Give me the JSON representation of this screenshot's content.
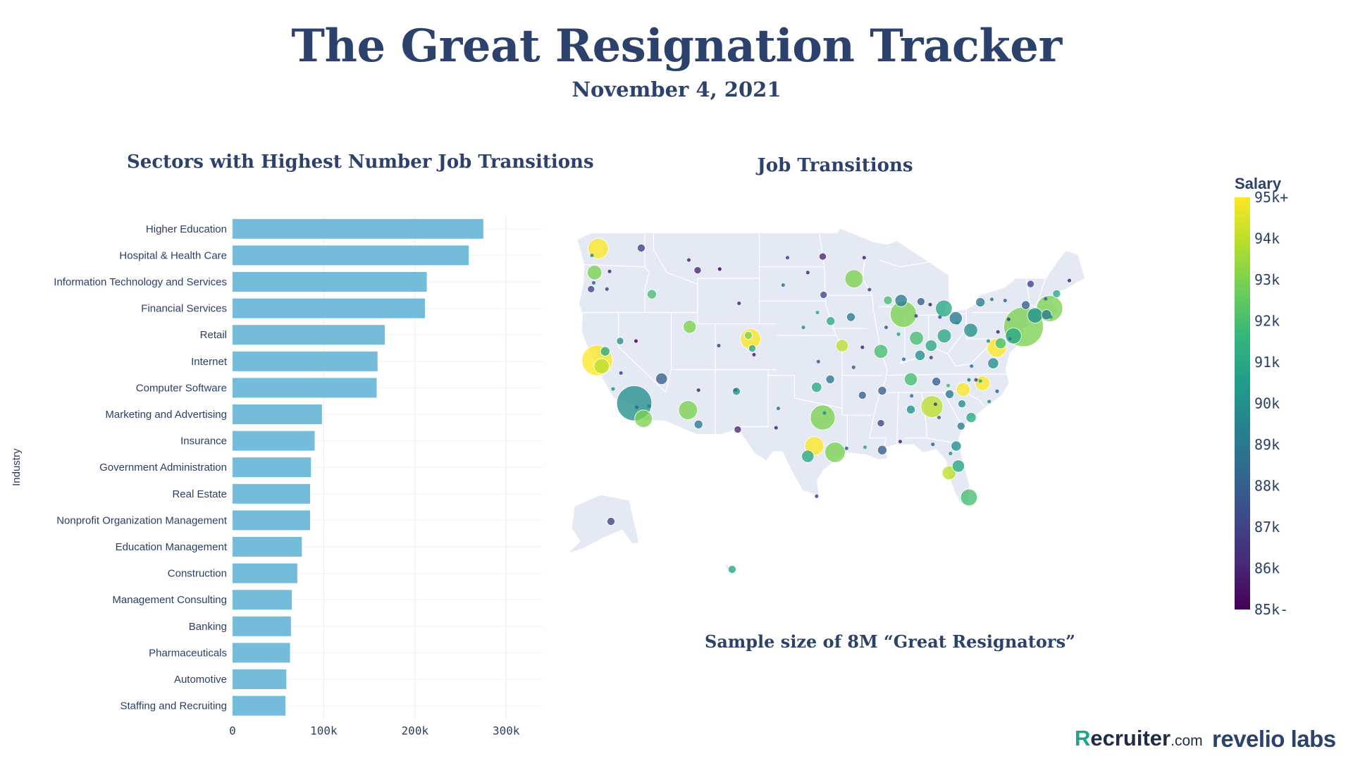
{
  "header": {
    "title": "The Great Resignation Tracker",
    "date": "November 4, 2021"
  },
  "map": {
    "title": "Job Transitions",
    "note": "Sample size of 8M “Great Resignators”"
  },
  "colorbar": {
    "title": "Salary",
    "ticks": [
      "95k+",
      "94k",
      "93k",
      "92k",
      "91k",
      "90k",
      "89k",
      "88k",
      "87k",
      "86k",
      "85k-"
    ],
    "colors": [
      "#440154",
      "#482878",
      "#3e4989",
      "#31688e",
      "#26828e",
      "#1f9e89",
      "#35b779",
      "#6ece58",
      "#b5de2b",
      "#fde725"
    ]
  },
  "logos": {
    "recruiter_r": "R",
    "recruiter_main": "ecruiter",
    "recruiter_com": ".com",
    "revelio": "revelio labs"
  },
  "chart_data": [
    {
      "type": "bar",
      "orientation": "horizontal",
      "title": "Sectors with Highest Number Job Transitions",
      "ylabel": "Industry",
      "xlabel": "",
      "color": "#74bcd9",
      "xlim": [
        0,
        340000
      ],
      "xticks": [
        0,
        100000,
        200000,
        300000
      ],
      "xtick_labels": [
        "0",
        "100k",
        "200k",
        "300k"
      ],
      "categories": [
        "Higher Education",
        "Hospital & Health Care",
        "Information Technology and Services",
        "Financial Services",
        "Retail",
        "Internet",
        "Computer Software",
        "Marketing and Advertising",
        "Insurance",
        "Government Administration",
        "Real Estate",
        "Nonprofit Organization Management",
        "Education Management",
        "Construction",
        "Management Consulting",
        "Banking",
        "Pharmaceuticals",
        "Automotive",
        "Staffing and Recruiting"
      ],
      "values": [
        275000,
        259000,
        213000,
        211000,
        167000,
        159000,
        158000,
        98000,
        90000,
        86000,
        85000,
        85000,
        76000,
        71000,
        65000,
        64000,
        63000,
        59000,
        58000
      ]
    },
    {
      "type": "scatter",
      "subtype": "bubble-map",
      "title": "Job Transitions",
      "region": "United States",
      "x_field": "longitude",
      "y_field": "latitude",
      "size_field": "job_transitions_relative",
      "color_field": "salary_k",
      "color_range": [
        85,
        95
      ],
      "points": [
        {
          "city": "Seattle",
          "lon": -122.3,
          "lat": 47.6,
          "size": 2.2,
          "salary": 95
        },
        {
          "city": "Portland",
          "lon": -122.7,
          "lat": 45.5,
          "size": 1.4,
          "salary": 93
        },
        {
          "city": "San Francisco",
          "lon": -122.4,
          "lat": 37.8,
          "size": 3.6,
          "salary": 95
        },
        {
          "city": "San Jose",
          "lon": -121.9,
          "lat": 37.3,
          "size": 1.5,
          "salary": 94
        },
        {
          "city": "Los Angeles",
          "lon": -118.2,
          "lat": 34.05,
          "size": 4.2,
          "salary": 90
        },
        {
          "city": "San Diego",
          "lon": -117.15,
          "lat": 32.7,
          "size": 1.8,
          "salary": 93
        },
        {
          "city": "Sacramento",
          "lon": -121.5,
          "lat": 38.6,
          "size": 0.7,
          "salary": 91
        },
        {
          "city": "Las Vegas",
          "lon": -115.1,
          "lat": 36.2,
          "size": 1.0,
          "salary": 88
        },
        {
          "city": "Phoenix",
          "lon": -112.1,
          "lat": 33.45,
          "size": 2.0,
          "salary": 93
        },
        {
          "city": "Tucson",
          "lon": -110.9,
          "lat": 32.2,
          "size": 0.6,
          "salary": 89
        },
        {
          "city": "Salt Lake City",
          "lon": -111.9,
          "lat": 40.75,
          "size": 1.2,
          "salary": 93
        },
        {
          "city": "Boise",
          "lon": -116.2,
          "lat": 43.6,
          "size": 0.7,
          "salary": 92
        },
        {
          "city": "Denver",
          "lon": -105.0,
          "lat": 39.7,
          "size": 2.2,
          "salary": 95
        },
        {
          "city": "Albuquerque",
          "lon": -106.6,
          "lat": 35.1,
          "size": 0.5,
          "salary": 90
        },
        {
          "city": "Dallas",
          "lon": -96.8,
          "lat": 32.8,
          "size": 2.8,
          "salary": 93
        },
        {
          "city": "Houston",
          "lon": -95.4,
          "lat": 29.75,
          "size": 2.2,
          "salary": 93
        },
        {
          "city": "Austin",
          "lon": -97.75,
          "lat": 30.3,
          "size": 2.0,
          "salary": 95
        },
        {
          "city": "San Antonio",
          "lon": -98.5,
          "lat": 29.4,
          "size": 1.1,
          "salary": 91
        },
        {
          "city": "Oklahoma City",
          "lon": -97.5,
          "lat": 35.45,
          "size": 0.8,
          "salary": 91
        },
        {
          "city": "Kansas City",
          "lon": -94.6,
          "lat": 39.1,
          "size": 1.1,
          "salary": 94
        },
        {
          "city": "Omaha",
          "lon": -95.9,
          "lat": 41.25,
          "size": 0.6,
          "salary": 91
        },
        {
          "city": "Minneapolis",
          "lon": -93.25,
          "lat": 44.95,
          "size": 1.9,
          "salary": 93
        },
        {
          "city": "St. Louis",
          "lon": -90.2,
          "lat": 38.6,
          "size": 1.3,
          "salary": 92
        },
        {
          "city": "Chicago",
          "lon": -87.65,
          "lat": 41.85,
          "size": 3.0,
          "salary": 93
        },
        {
          "city": "Milwaukee",
          "lon": -87.9,
          "lat": 43.05,
          "size": 1.1,
          "salary": 89
        },
        {
          "city": "Indianapolis",
          "lon": -86.15,
          "lat": 39.75,
          "size": 1.3,
          "salary": 92
        },
        {
          "city": "Detroit",
          "lon": -83.05,
          "lat": 42.35,
          "size": 1.7,
          "salary": 91
        },
        {
          "city": "Columbus",
          "lon": -83.0,
          "lat": 39.95,
          "size": 1.3,
          "salary": 91
        },
        {
          "city": "Cleveland",
          "lon": -81.7,
          "lat": 41.5,
          "size": 1.2,
          "salary": 89
        },
        {
          "city": "Pittsburgh",
          "lon": -80.0,
          "lat": 40.45,
          "size": 1.3,
          "salary": 90
        },
        {
          "city": "Nashville",
          "lon": -86.8,
          "lat": 36.15,
          "size": 1.2,
          "salary": 92
        },
        {
          "city": "Memphis",
          "lon": -90.05,
          "lat": 35.15,
          "size": 0.6,
          "salary": 88
        },
        {
          "city": "Atlanta",
          "lon": -84.4,
          "lat": 33.75,
          "size": 2.4,
          "salary": 94
        },
        {
          "city": "Charlotte",
          "lon": -80.85,
          "lat": 35.25,
          "size": 1.3,
          "salary": 95
        },
        {
          "city": "Raleigh",
          "lon": -78.65,
          "lat": 35.8,
          "size": 1.4,
          "salary": 95
        },
        {
          "city": "Charleston",
          "lon": -79.95,
          "lat": 32.8,
          "size": 0.8,
          "salary": 91
        },
        {
          "city": "Orlando",
          "lon": -81.4,
          "lat": 28.55,
          "size": 1.1,
          "salary": 91
        },
        {
          "city": "Tampa",
          "lon": -82.45,
          "lat": 27.95,
          "size": 1.3,
          "salary": 94
        },
        {
          "city": "Miami",
          "lon": -80.2,
          "lat": 25.8,
          "size": 1.7,
          "salary": 92
        },
        {
          "city": "Washington DC",
          "lon": -77.05,
          "lat": 38.9,
          "size": 2.0,
          "salary": 95
        },
        {
          "city": "Philadelphia",
          "lon": -75.15,
          "lat": 39.95,
          "size": 1.6,
          "salary": 91
        },
        {
          "city": "New York",
          "lon": -74.0,
          "lat": 40.75,
          "size": 4.8,
          "salary": 93
        },
        {
          "city": "Boston",
          "lon": -71.05,
          "lat": 42.35,
          "size": 3.0,
          "salary": 93
        },
        {
          "city": "Hartford",
          "lon": -72.7,
          "lat": 41.75,
          "size": 1.5,
          "salary": 90
        },
        {
          "city": "Baltimore",
          "lon": -76.6,
          "lat": 39.3,
          "size": 0.9,
          "salary": 92
        },
        {
          "city": "Richmond",
          "lon": -77.45,
          "lat": 37.55,
          "size": 0.9,
          "salary": 90
        },
        {
          "city": "New Orleans",
          "lon": -90.05,
          "lat": 29.95,
          "size": 0.7,
          "salary": 88
        },
        {
          "city": "Birmingham",
          "lon": -86.8,
          "lat": 33.5,
          "size": 0.6,
          "salary": 90
        },
        {
          "city": "Cincinnati",
          "lon": -84.5,
          "lat": 39.1,
          "size": 1.0,
          "salary": 91
        },
        {
          "city": "Louisville",
          "lon": -85.75,
          "lat": 38.25,
          "size": 0.8,
          "salary": 90
        },
        {
          "city": "Buffalo",
          "lon": -78.9,
          "lat": 42.9,
          "size": 0.7,
          "salary": 89
        },
        {
          "city": "Jacksonville",
          "lon": -81.65,
          "lat": 30.3,
          "size": 0.8,
          "salary": 90
        },
        {
          "city": "Tulsa",
          "lon": -95.95,
          "lat": 36.15,
          "size": 0.6,
          "salary": 89
        },
        {
          "city": "Spokane",
          "lon": -117.4,
          "lat": 47.65,
          "size": 0.5,
          "salary": 87
        },
        {
          "city": "Bozeman",
          "lon": -111.0,
          "lat": 45.7,
          "size": 0.4,
          "salary": 86
        },
        {
          "city": "Fargo",
          "lon": -96.8,
          "lat": 46.9,
          "size": 0.4,
          "salary": 86
        },
        {
          "city": "Sioux Falls",
          "lon": -96.7,
          "lat": 43.55,
          "size": 0.4,
          "salary": 87
        },
        {
          "city": "Des Moines",
          "lon": -93.6,
          "lat": 41.6,
          "size": 0.6,
          "salary": 89
        },
        {
          "city": "Madison",
          "lon": -89.4,
          "lat": 43.07,
          "size": 0.6,
          "salary": 92
        },
        {
          "city": "Grand Rapids",
          "lon": -85.65,
          "lat": 42.95,
          "size": 0.5,
          "salary": 88
        },
        {
          "city": "Albany",
          "lon": -73.75,
          "lat": 42.65,
          "size": 0.6,
          "salary": 88
        },
        {
          "city": "Providence",
          "lon": -71.4,
          "lat": 41.8,
          "size": 0.8,
          "salary": 89
        },
        {
          "city": "Portland ME",
          "lon": -70.25,
          "lat": 43.65,
          "size": 0.5,
          "salary": 91
        },
        {
          "city": "Burlington",
          "lon": -73.2,
          "lat": 44.5,
          "size": 0.4,
          "salary": 87
        },
        {
          "city": "El Paso",
          "lon": -106.45,
          "lat": 31.75,
          "size": 0.4,
          "salary": 86
        },
        {
          "city": "Little Rock",
          "lon": -92.3,
          "lat": 34.75,
          "size": 0.5,
          "salary": 88
        },
        {
          "city": "Jackson",
          "lon": -90.2,
          "lat": 32.3,
          "size": 0.4,
          "salary": 87
        },
        {
          "city": "Knoxville",
          "lon": -83.9,
          "lat": 35.95,
          "size": 0.6,
          "salary": 88
        },
        {
          "city": "Greenville",
          "lon": -82.4,
          "lat": 34.85,
          "size": 0.6,
          "salary": 89
        },
        {
          "city": "Columbia",
          "lon": -81.0,
          "lat": 34.0,
          "size": 0.5,
          "salary": 90
        },
        {
          "city": "Savannah",
          "lon": -81.1,
          "lat": 32.05,
          "size": 0.5,
          "salary": 89
        },
        {
          "city": "Boulder",
          "lon": -105.25,
          "lat": 40.0,
          "size": 0.5,
          "salary": 93
        },
        {
          "city": "Colorado Springs",
          "lon": -104.8,
          "lat": 38.85,
          "size": 0.4,
          "salary": 91
        },
        {
          "city": "Reno",
          "lon": -119.8,
          "lat": 39.5,
          "size": 0.4,
          "salary": 90
        },
        {
          "city": "Eugene",
          "lon": -123.1,
          "lat": 44.05,
          "size": 0.4,
          "salary": 87
        },
        {
          "city": "Anchorage",
          "lon": -149.9,
          "lat": 61.2,
          "size": 0.5,
          "salary": 87
        },
        {
          "city": "Honolulu",
          "lon": -157.85,
          "lat": 21.3,
          "size": 0.5,
          "salary": 91
        }
      ]
    }
  ]
}
